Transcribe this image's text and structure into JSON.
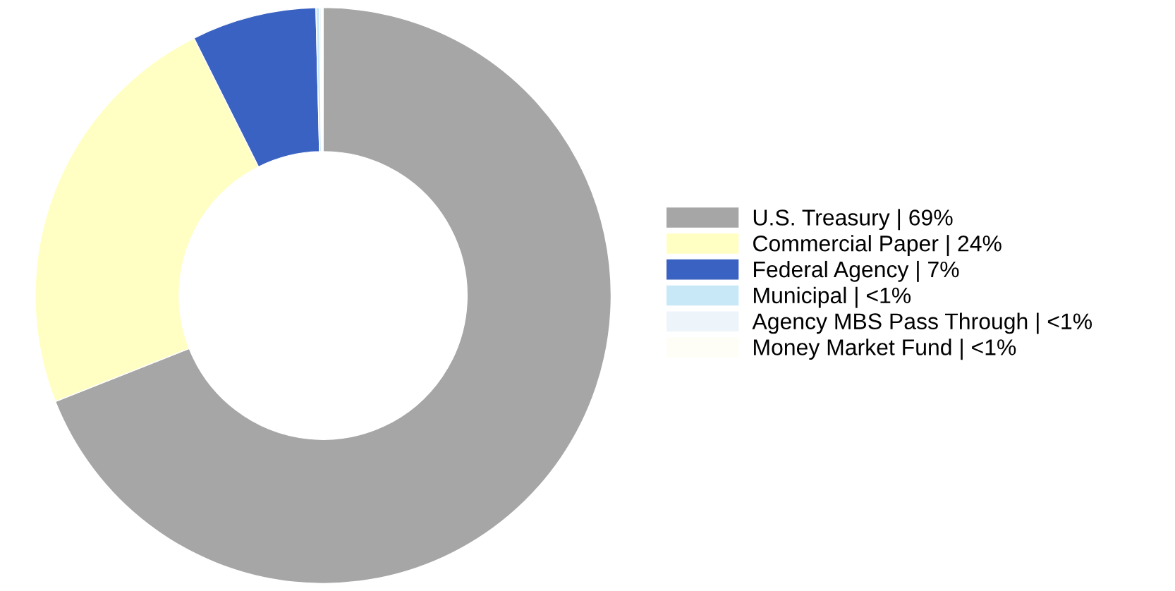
{
  "chart_data": {
    "type": "donut",
    "categories": [
      "U.S. Treasury | 69%",
      "Commercial Paper | 24%",
      "Federal Agency | 7%",
      "Municipal | <1%",
      "Agency MBS Pass Through | <1%",
      "Money Market Fund | <1%"
    ],
    "values": [
      69,
      23.6,
      7,
      0.2,
      0.1,
      0.1
    ],
    "colors": [
      "#a6a6a6",
      "#ffffc4",
      "#3a62c2",
      "#c8e8f8",
      "#eef5fa",
      "#fefef6"
    ],
    "legend": "right"
  }
}
